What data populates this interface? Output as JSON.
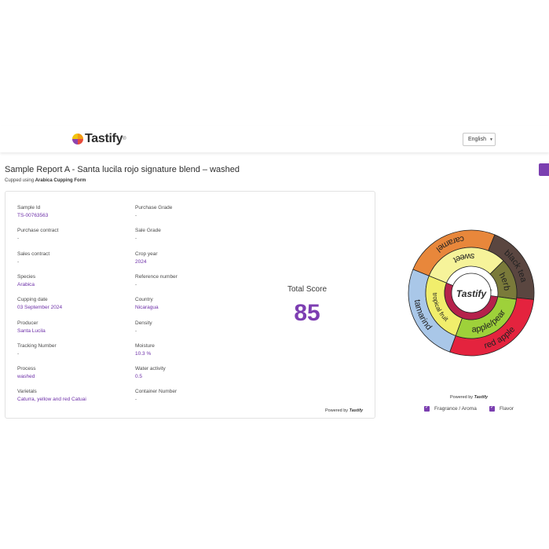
{
  "header": {
    "brand": "Tastify",
    "brand_tm": "®",
    "language": "English"
  },
  "report": {
    "title": "Sample Report A - Santa lucila rojo signature blend – washed",
    "cupped_prefix": "Cupped using",
    "form_name": "Arabica Cupping Form"
  },
  "fields_left": [
    {
      "label": "Sample Id",
      "value": "TS-00763563"
    },
    {
      "label": "Purchase contract",
      "value": "-"
    },
    {
      "label": "Sales contract",
      "value": "-"
    },
    {
      "label": "Species",
      "value": "Arabica"
    },
    {
      "label": "Cupping date",
      "value": "03 September 2024"
    },
    {
      "label": "Producer",
      "value": "Santa Lucila"
    },
    {
      "label": "Tracking Number",
      "value": "-"
    },
    {
      "label": "Process",
      "value": "washed"
    },
    {
      "label": "Varietals",
      "value": "Caturra, yellow and red Catuai"
    }
  ],
  "fields_right": [
    {
      "label": "Purchase Grade",
      "value": "-"
    },
    {
      "label": "Sale Grade",
      "value": "-"
    },
    {
      "label": "Crop year",
      "value": "2024"
    },
    {
      "label": "Reference number",
      "value": "-"
    },
    {
      "label": "Country",
      "value": "Nicaragua"
    },
    {
      "label": "Density",
      "value": "-"
    },
    {
      "label": "Moisture",
      "value": "10.3 %"
    },
    {
      "label": "Water activity",
      "value": "0.5"
    },
    {
      "label": "Container Number",
      "value": "-"
    }
  ],
  "score": {
    "label": "Total Score",
    "value": "85"
  },
  "powered_by": {
    "prefix": "Powered by",
    "brand": "Tastify"
  },
  "wheel": {
    "center_label": "Tastify",
    "center_tm": "®",
    "labels": {
      "sweet": "sweet",
      "herb": "herb",
      "fruit": "fruit",
      "tropical": "tropical fruit",
      "apple": "apple/pear",
      "caramel": "caramel",
      "blacktea": "black tea",
      "tamarind": "tamarind",
      "redapple": "red apple"
    },
    "colors": {
      "center": "#ffffff",
      "fruit": "#b5224b",
      "sweet": "#f6f39a",
      "herb": "#7a7a3a",
      "tropical": "#f1ee6c",
      "apple": "#9ed13a",
      "caramel": "#e8873b",
      "blacktea": "#5a4640",
      "tamarind": "#a9c7e8",
      "redapple": "#e4233e"
    }
  },
  "legend": [
    {
      "label": "Fragrance / Aroma",
      "checked": true
    },
    {
      "label": "Flavor",
      "checked": true
    }
  ]
}
